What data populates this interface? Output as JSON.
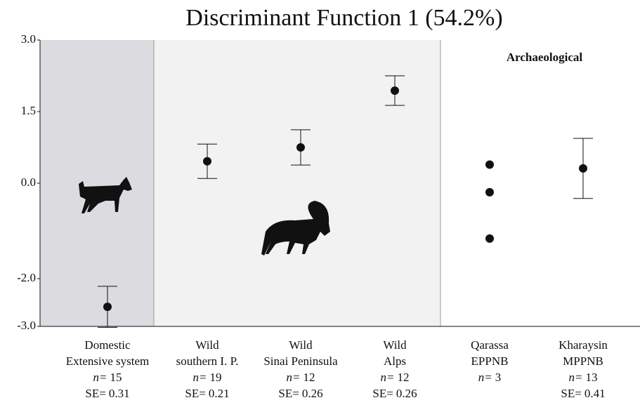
{
  "chart_data": {
    "type": "dot",
    "title": "Discriminant Function 1 (54.2%)",
    "annotation": "Archaeological",
    "categories": [
      [
        "Domestic",
        "Extensive system"
      ],
      [
        "Wild",
        "southern I. P."
      ],
      [
        "Wild",
        "Sinai Peninsula"
      ],
      [
        "Wild",
        "Alps"
      ],
      [
        "Qarassa",
        "EPPNB"
      ],
      [
        "Kharaysin",
        "MPPNB"
      ]
    ],
    "n_label": "n=",
    "n": [
      15,
      19,
      12,
      12,
      3,
      13
    ],
    "se_label": "SE=",
    "se": [
      0.31,
      0.21,
      0.26,
      0.26,
      null,
      0.41
    ],
    "values": [
      -2.59,
      0.46,
      0.75,
      1.94,
      [
        0.39,
        -0.19,
        -1.16
      ],
      0.31
    ],
    "errors": [
      0.43,
      0.36,
      0.37,
      0.31,
      null,
      0.63
    ],
    "color": "#111111",
    "ylim": [
      -3,
      3
    ],
    "yticks": [
      {
        "value": 3,
        "label": "3.0"
      },
      {
        "value": 1.5,
        "label": "1.5"
      },
      {
        "value": 0,
        "label": "0.0"
      },
      {
        "value": -2,
        "label": "-2.0"
      },
      {
        "value": -3,
        "label": "-3.0"
      }
    ]
  }
}
